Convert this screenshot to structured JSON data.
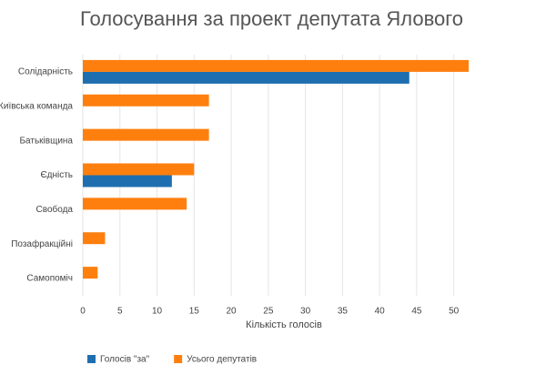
{
  "chart_data": {
    "type": "hbar",
    "title": "Голосування за проект депутата Ялового",
    "categories": [
      "Солідарність",
      "Київська команда",
      "Батьківщина",
      "Єдність",
      "Свобода",
      "Позафракційні",
      "Самопоміч"
    ],
    "series": [
      {
        "name": "Голосів \"за\"",
        "color": "#1f6fb0",
        "values": [
          44,
          0,
          0,
          12,
          0,
          0,
          0
        ]
      },
      {
        "name": "Усього депутатів",
        "color": "#ff7f0e",
        "values": [
          52,
          17,
          17,
          15,
          14,
          3,
          2
        ]
      }
    ],
    "xlabel": "Кількість голосів",
    "xlim": [
      0,
      52
    ],
    "xticks": [
      0,
      5,
      10,
      15,
      20,
      25,
      30,
      35,
      40,
      45,
      50
    ],
    "grid": true
  }
}
